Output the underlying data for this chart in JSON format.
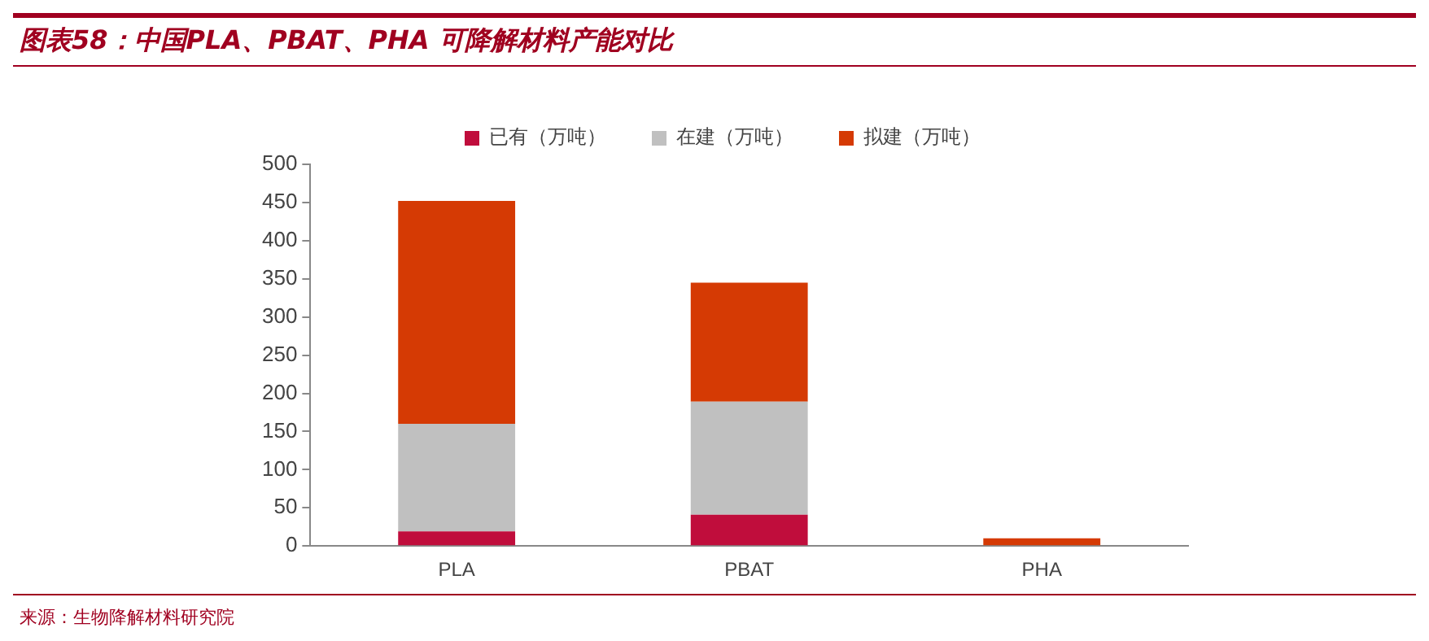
{
  "chart_data": {
    "type": "bar",
    "title": "图表58：中国PLA、PBAT、PHA 可降解材料产能对比",
    "categories": [
      "PLA",
      "PBAT",
      "PHA"
    ],
    "series": [
      {
        "name": "已有（万吨）",
        "color": "#c00d3c",
        "values": [
          19,
          41,
          0
        ]
      },
      {
        "name": "在建（万吨）",
        "color": "#c0c0c0",
        "values": [
          141,
          148,
          0
        ]
      },
      {
        "name": "拟建（万吨）",
        "color": "#d53a04",
        "values": [
          292,
          156,
          10
        ]
      }
    ],
    "stacked": true,
    "ylim": [
      0,
      500
    ],
    "yticks": [
      0,
      50,
      100,
      150,
      200,
      250,
      300,
      350,
      400,
      450,
      500
    ],
    "grid": false,
    "legend": "top",
    "annotations": [
      "来源：生物降解材料研究院"
    ]
  }
}
